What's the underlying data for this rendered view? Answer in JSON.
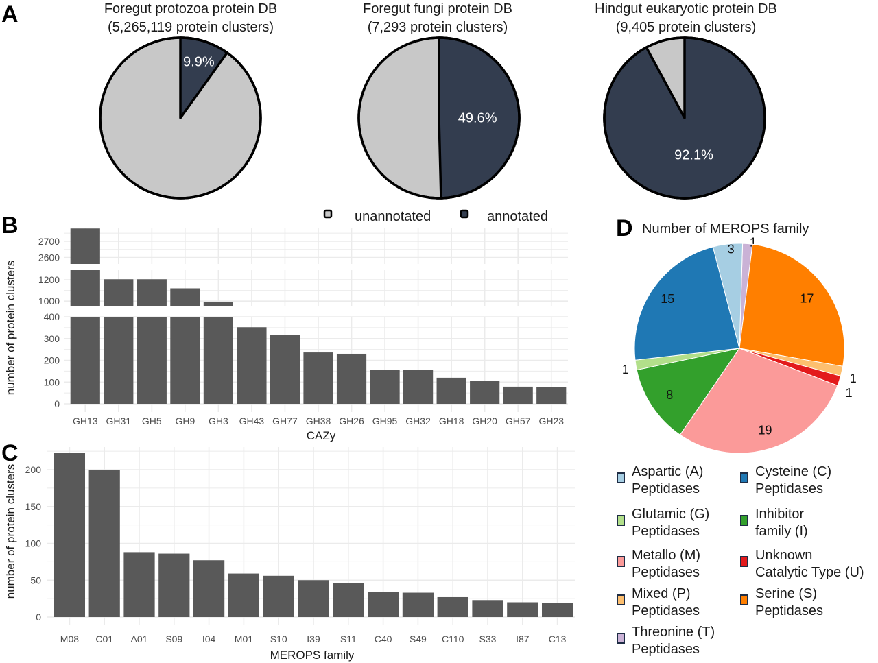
{
  "panels": {
    "a": "A",
    "b": "B",
    "c": "C",
    "d": "D"
  },
  "legend_a": {
    "items": [
      {
        "label": "unannotated",
        "color": "#c8c8c8"
      },
      {
        "label": "annotated",
        "color": "#333d4f"
      }
    ]
  },
  "chart_data": [
    {
      "id": "pie-protozoa",
      "type": "pie",
      "title": "Foregut protozoa protein DB",
      "subtitle": "(5,265,119 protein clusters)",
      "slices": [
        {
          "name": "annotated",
          "value": 9.9,
          "label": "9.9%",
          "color": "#333d4f"
        },
        {
          "name": "unannotated",
          "value": 90.1,
          "label": "",
          "color": "#c8c8c8"
        }
      ]
    },
    {
      "id": "pie-fungi",
      "type": "pie",
      "title": "Foregut fungi protein DB",
      "subtitle": "(7,293 protein clusters)",
      "slices": [
        {
          "name": "annotated",
          "value": 49.6,
          "label": "49.6%",
          "color": "#333d4f"
        },
        {
          "name": "unannotated",
          "value": 50.4,
          "label": "",
          "color": "#c8c8c8"
        }
      ]
    },
    {
      "id": "pie-hindgut",
      "type": "pie",
      "title": "Hindgut eukaryotic protein DB",
      "subtitle": "(9,405 protein clusters)",
      "slices": [
        {
          "name": "annotated",
          "value": 92.1,
          "label": "92.1%",
          "color": "#333d4f"
        },
        {
          "name": "unannotated",
          "value": 7.9,
          "label": "",
          "color": "#c8c8c8"
        }
      ]
    },
    {
      "id": "bar-cazy",
      "type": "bar",
      "title": "",
      "xlabel": "CAZy",
      "ylabel": "number of protein clusters",
      "grid": true,
      "broken_axis": true,
      "segments": [
        {
          "range": [
            0,
            400
          ],
          "ticks": [
            0,
            100,
            200,
            300,
            400
          ]
        },
        {
          "range": [
            950,
            1290
          ],
          "ticks": [
            1000,
            1200
          ]
        },
        {
          "range": [
            2560,
            2780
          ],
          "ticks": [
            2600,
            2700
          ]
        }
      ],
      "categories": [
        "GH13",
        "GH31",
        "GH5",
        "GH9",
        "GH3",
        "GH43",
        "GH77",
        "GH38",
        "GH26",
        "GH95",
        "GH32",
        "GH18",
        "GH20",
        "GH57",
        "GH23"
      ],
      "values": [
        2779,
        1205,
        1205,
        1120,
        990,
        352,
        315,
        236,
        230,
        157,
        157,
        120,
        104,
        79,
        76
      ],
      "bar_color": "#595959"
    },
    {
      "id": "bar-merops",
      "type": "bar",
      "title": "",
      "xlabel": "MEROPS family",
      "ylabel": "number of protein clusters",
      "grid": true,
      "ylim": [
        0,
        230
      ],
      "ticks": [
        0,
        50,
        100,
        150,
        200
      ],
      "categories": [
        "M08",
        "C01",
        "A01",
        "S09",
        "I04",
        "M01",
        "S10",
        "I39",
        "S11",
        "C40",
        "S49",
        "C110",
        "S33",
        "I87",
        "C13"
      ],
      "values": [
        223,
        200,
        88,
        86,
        77,
        59,
        56,
        50,
        46,
        34,
        33,
        27,
        23,
        20,
        19
      ],
      "bar_color": "#595959"
    },
    {
      "id": "pie-merops",
      "type": "pie",
      "title": "Number of MEROPS family",
      "slices": [
        {
          "name": "Threonine (T) Peptidases",
          "value": 1,
          "label": "1",
          "color": "#cab2d6"
        },
        {
          "name": "Serine (S) Peptidases",
          "value": 17,
          "label": "17",
          "color": "#ff7f00"
        },
        {
          "name": "Mixed (P) Peptidases",
          "value": 1,
          "label": "1",
          "color": "#fdbf6f"
        },
        {
          "name": "Unknown Catalytic Type (U)",
          "value": 1,
          "label": "1",
          "color": "#e31a1c"
        },
        {
          "name": "Metallo (M) Peptidases",
          "value": 19,
          "label": "19",
          "color": "#fb9a99"
        },
        {
          "name": "Inhibitor family (I)",
          "value": 8,
          "label": "8",
          "color": "#33a02c"
        },
        {
          "name": "Glutamic (G) Peptidases",
          "value": 1,
          "label": "1",
          "color": "#b2df8a"
        },
        {
          "name": "Cysteine (C) Peptidases",
          "value": 15,
          "label": "15",
          "color": "#1f78b4"
        },
        {
          "name": "Aspartic (A) Peptidases",
          "value": 3,
          "label": "3",
          "color": "#a6cee3"
        }
      ],
      "legend": [
        {
          "line1": "Aspartic (A)",
          "line2": "Peptidases",
          "color": "#a6cee3"
        },
        {
          "line1": "Cysteine (C)",
          "line2": "Peptidases",
          "color": "#1f78b4"
        },
        {
          "line1": "Glutamic (G)",
          "line2": "Peptidases",
          "color": "#b2df8a"
        },
        {
          "line1": "Inhibitor",
          "line2": "family (I)",
          "color": "#33a02c"
        },
        {
          "line1": "Metallo (M)",
          "line2": "Peptidases",
          "color": "#fb9a99"
        },
        {
          "line1": "Unknown",
          "line2": "Catalytic Type (U)",
          "color": "#e31a1c"
        },
        {
          "line1": "Mixed (P)",
          "line2": "Peptidases",
          "color": "#fdbf6f"
        },
        {
          "line1": "Serine (S)",
          "line2": "Peptidases",
          "color": "#ff7f00"
        },
        {
          "line1": "Threonine (T)",
          "line2": "Peptidases",
          "color": "#cab2d6"
        }
      ]
    }
  ]
}
